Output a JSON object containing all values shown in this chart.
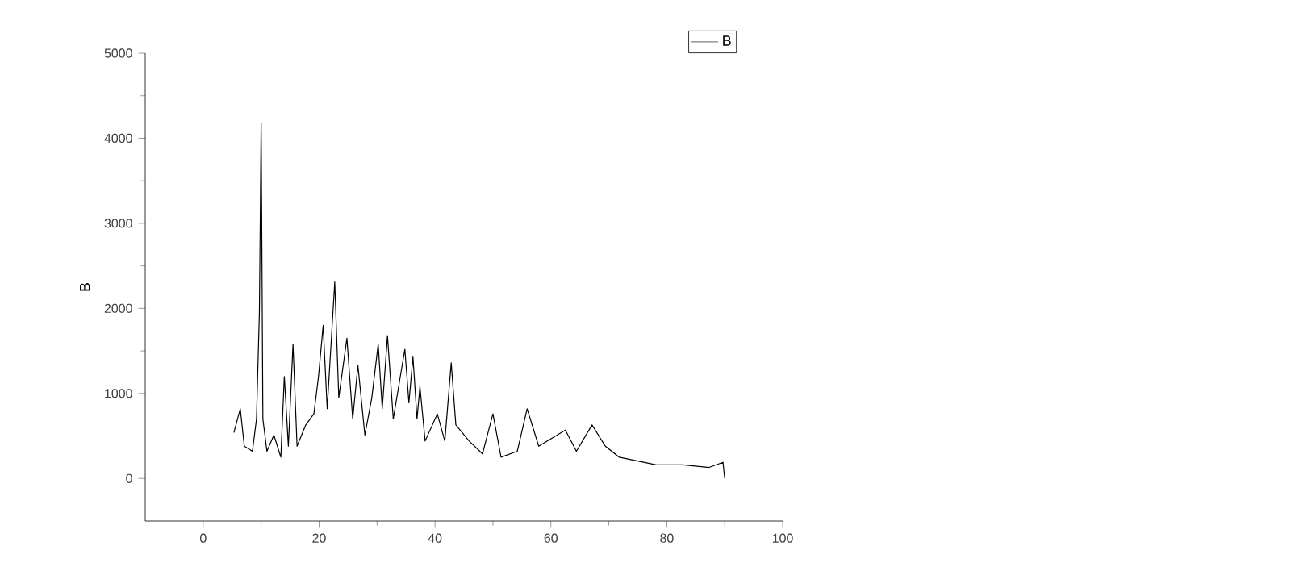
{
  "chart_data": {
    "type": "line",
    "ylabel": "B",
    "xlim": [
      -10,
      100
    ],
    "ylim": [
      -500,
      5000
    ],
    "xticks": [
      0,
      20,
      40,
      60,
      80,
      100
    ],
    "yticks": [
      0,
      1000,
      2000,
      3000,
      4000,
      5000
    ],
    "legend": "top",
    "grid": false,
    "marker": "none",
    "line_style": "solid",
    "series": [
      {
        "name": "B",
        "color": "#000000",
        "x": [
          5.3,
          6.4,
          7.1,
          8.5,
          9.2,
          9.7,
          10.0,
          10.3,
          11.0,
          12.2,
          13.4,
          14.0,
          14.7,
          15.5,
          16.2,
          17.7,
          19.1,
          19.9,
          20.7,
          21.4,
          22.7,
          23.4,
          24.8,
          25.8,
          26.7,
          27.9,
          29.1,
          30.2,
          30.9,
          31.8,
          32.8,
          34.8,
          35.5,
          36.2,
          36.9,
          37.4,
          38.3,
          40.4,
          41.7,
          42.8,
          43.6,
          45.9,
          48.2,
          50.0,
          51.4,
          54.2,
          55.9,
          57.9,
          62.5,
          64.4,
          67.1,
          69.4,
          71.8,
          78.2,
          82.8,
          87.3,
          89.7,
          90.0
        ],
        "values": [
          540,
          820,
          380,
          320,
          700,
          1960,
          4180,
          700,
          320,
          510,
          250,
          1200,
          380,
          1580,
          380,
          630,
          760,
          1200,
          1800,
          820,
          2310,
          950,
          1650,
          700,
          1330,
          510,
          950,
          1580,
          820,
          1680,
          700,
          1520,
          890,
          1430,
          700,
          1080,
          440,
          760,
          440,
          1360,
          630,
          440,
          290,
          760,
          250,
          320,
          820,
          380,
          570,
          320,
          630,
          380,
          250,
          160,
          160,
          130,
          190,
          0
        ]
      }
    ]
  }
}
